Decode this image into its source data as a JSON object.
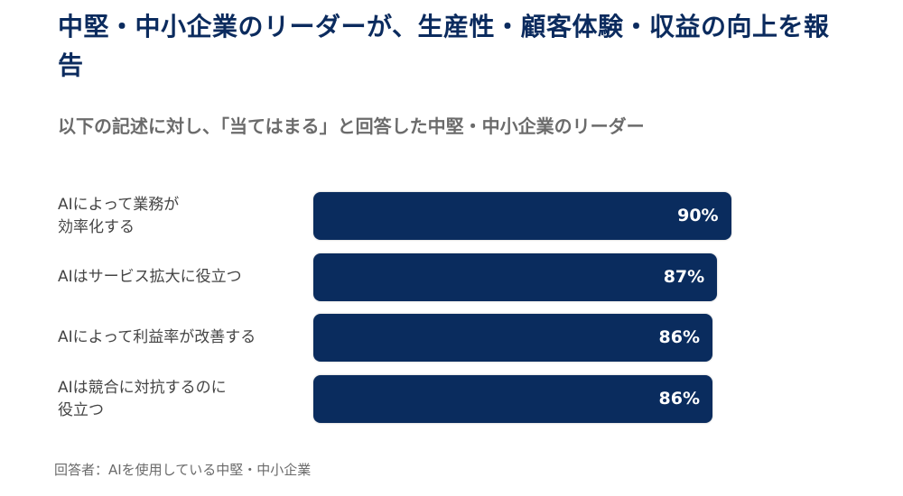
{
  "chart_data": {
    "type": "bar",
    "orientation": "horizontal",
    "title": "中堅・中小企業のリーダーが、生産性・顧客体験・収益の向上を報告",
    "subtitle": "以下の記述に対し、「当てはまる」と回答した中堅・中小企業のリーダー",
    "categories": [
      "AIによって業務が\n効率化する",
      "AIはサービス拡大に役立つ",
      "AIによって利益率が改善する",
      "AIは競合に対抗するのに\n役立つ"
    ],
    "values": [
      90,
      87,
      86,
      86
    ],
    "value_labels": [
      "90%",
      "87%",
      "86%",
      "86%"
    ],
    "xlim": [
      0,
      100
    ],
    "bar_color": "#0a2c5e",
    "footer": "回答者：AIを使用している中堅・中小企業"
  }
}
